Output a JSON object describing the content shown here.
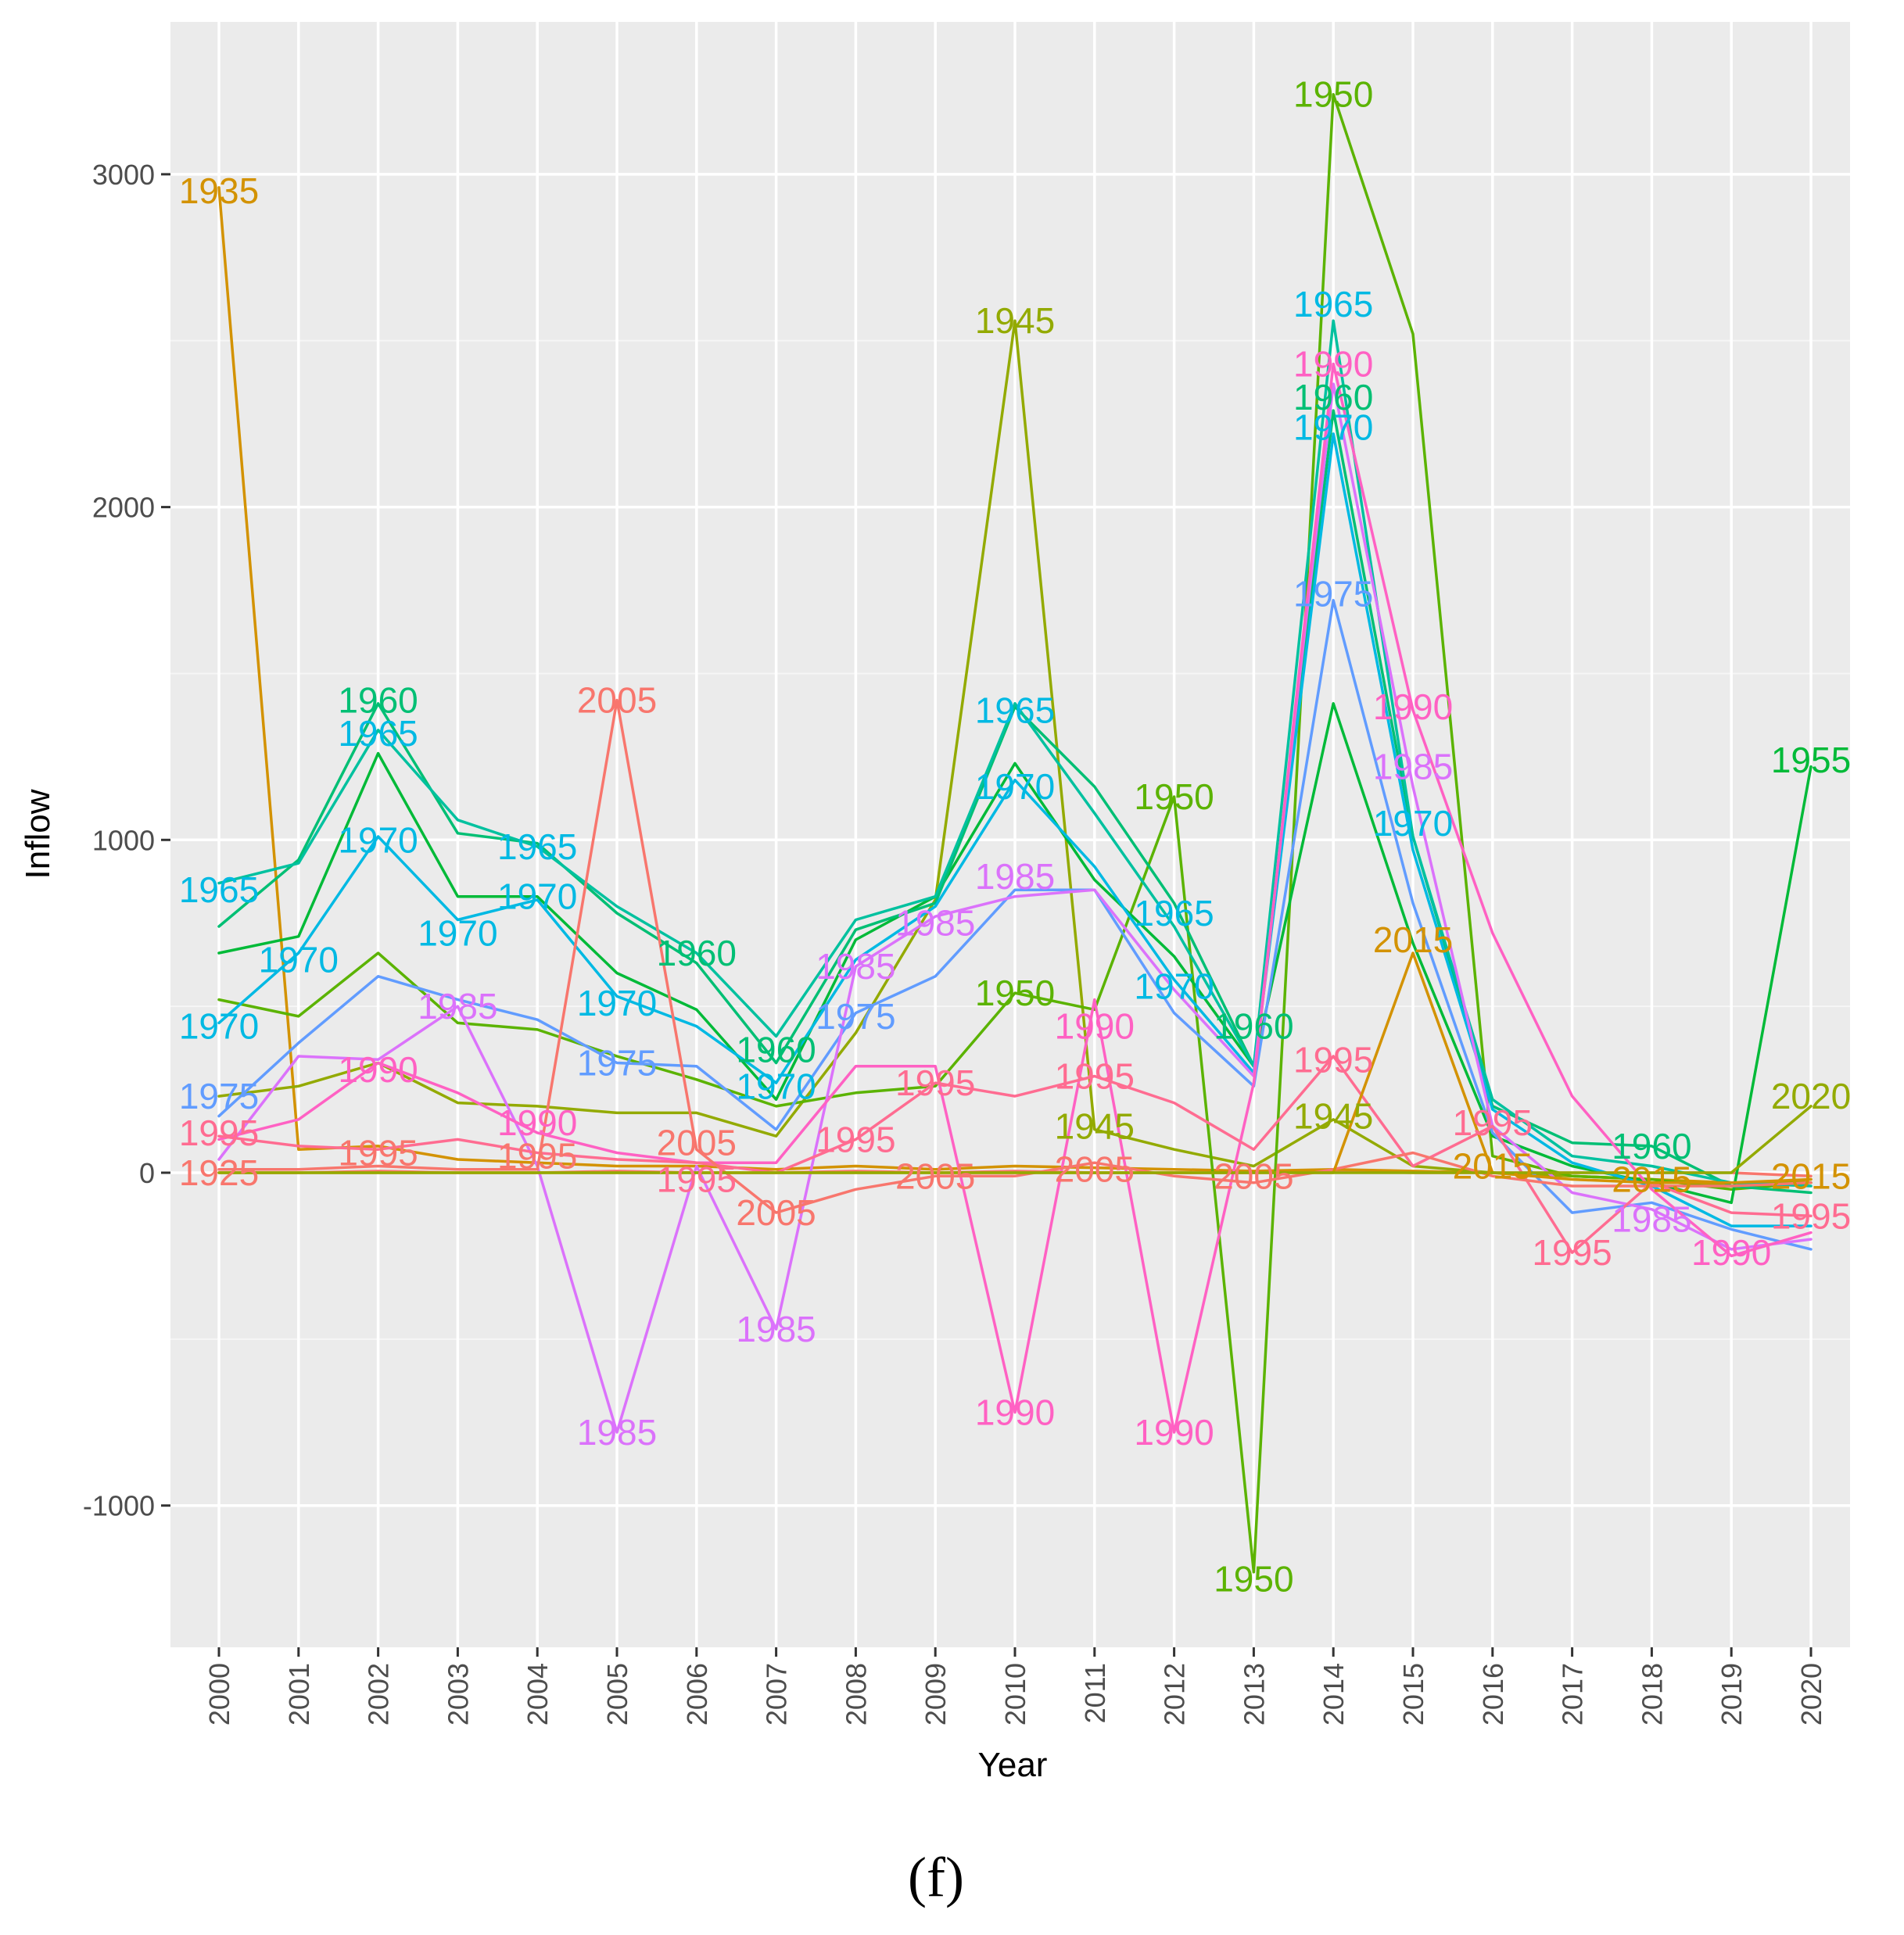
{
  "chart_data": {
    "type": "line",
    "xlabel": "Year",
    "ylabel": "Inflow",
    "caption": "(f)",
    "ylim": [
      -1420,
      3470
    ],
    "yticks": [
      -1000,
      0,
      1000,
      2000,
      3000
    ],
    "ytick_labels": [
      "-1000",
      "0",
      "1000",
      "2000",
      "3000"
    ],
    "x": [
      "2000",
      "2001",
      "2002",
      "2003",
      "2004",
      "2005",
      "2006",
      "2007",
      "2008",
      "2009",
      "2010",
      "2011",
      "2012",
      "2013",
      "2014",
      "2015",
      "2016",
      "2017",
      "2018",
      "2019",
      "2020"
    ],
    "grid": true,
    "series": [
      {
        "name": "1925",
        "color": "#F8766D",
        "values": [
          0,
          0,
          5,
          0,
          0,
          5,
          0,
          0,
          5,
          0,
          5,
          0,
          0,
          0,
          5,
          0,
          0,
          0,
          0,
          0,
          -10
        ]
      },
      {
        "name": "1935",
        "color": "#D39200",
        "values": [
          2960,
          70,
          80,
          40,
          30,
          20,
          20,
          10,
          20,
          10,
          20,
          15,
          10,
          5,
          10,
          5,
          0,
          -10,
          -20,
          -30,
          -30
        ]
      },
      {
        "name": "1945",
        "color": "#93AA00",
        "values": [
          230,
          260,
          330,
          210,
          200,
          180,
          180,
          110,
          420,
          820,
          2560,
          130,
          70,
          20,
          160,
          20,
          0,
          -10,
          -20,
          -40,
          -20
        ]
      },
      {
        "name": "1950",
        "color": "#5BB300",
        "values": [
          520,
          470,
          660,
          450,
          430,
          350,
          280,
          200,
          240,
          260,
          540,
          490,
          1130,
          -1200,
          3240,
          2520,
          50,
          -10,
          -20,
          -50,
          -30
        ]
      },
      {
        "name": "1955",
        "color": "#00BA38",
        "values": [
          660,
          710,
          1260,
          830,
          830,
          600,
          490,
          220,
          700,
          830,
          1230,
          880,
          650,
          320,
          1410,
          690,
          110,
          20,
          -30,
          -90,
          1220
        ]
      },
      {
        "name": "1960",
        "color": "#00BF74",
        "values": [
          740,
          940,
          1410,
          1020,
          990,
          780,
          630,
          330,
          730,
          810,
          1400,
          1160,
          810,
          320,
          2290,
          1010,
          200,
          90,
          80,
          -40,
          -60
        ]
      },
      {
        "name": "1965",
        "color": "#00C19F",
        "values": [
          870,
          930,
          1330,
          1060,
          980,
          800,
          660,
          410,
          760,
          830,
          1410,
          1080,
          740,
          320,
          2560,
          1010,
          220,
          50,
          20,
          -30,
          -40
        ]
      },
      {
        "name": "1970",
        "color": "#00B9E3",
        "values": [
          450,
          660,
          1010,
          760,
          820,
          530,
          440,
          270,
          640,
          800,
          1180,
          920,
          580,
          300,
          2220,
          970,
          190,
          30,
          -40,
          -160,
          -160
        ]
      },
      {
        "name": "1975",
        "color": "#619CFF",
        "values": [
          170,
          390,
          590,
          520,
          460,
          330,
          320,
          130,
          480,
          590,
          850,
          850,
          480,
          260,
          1720,
          810,
          120,
          -120,
          -90,
          -170,
          -230
        ]
      },
      {
        "name": "1985",
        "color": "#DB72FB",
        "values": [
          40,
          350,
          340,
          500,
          20,
          -780,
          20,
          -470,
          620,
          770,
          830,
          850,
          550,
          290,
          2370,
          1160,
          140,
          -60,
          -110,
          -230,
          -200
        ]
      },
      {
        "name": "1990",
        "color": "#FF61C3",
        "values": [
          100,
          160,
          330,
          240,
          120,
          60,
          30,
          30,
          320,
          320,
          -720,
          520,
          -780,
          270,
          2430,
          1390,
          720,
          230,
          -50,
          -250,
          -180
        ]
      },
      {
        "name": "1995",
        "color": "#FF6C91",
        "values": [
          110,
          80,
          70,
          100,
          60,
          40,
          30,
          0,
          100,
          270,
          230,
          290,
          210,
          70,
          350,
          20,
          140,
          -240,
          -30,
          -120,
          -130
        ]
      },
      {
        "name": "2005",
        "color": "#F8766D",
        "values": [
          10,
          10,
          20,
          10,
          10,
          1420,
          70,
          -120,
          -50,
          -10,
          -10,
          30,
          -10,
          -30,
          10,
          60,
          -10,
          -40,
          -40,
          -40,
          -30
        ]
      },
      {
        "name": "2015",
        "color": "#D39200",
        "values": [
          0,
          0,
          0,
          0,
          0,
          0,
          0,
          0,
          0,
          0,
          0,
          0,
          0,
          0,
          0,
          660,
          0,
          -20,
          -30,
          -30,
          -20
        ]
      },
      {
        "name": "2020",
        "color": "#93AA00",
        "values": [
          0,
          0,
          0,
          0,
          0,
          0,
          0,
          0,
          0,
          0,
          0,
          0,
          0,
          0,
          0,
          0,
          0,
          0,
          0,
          0,
          200
        ]
      }
    ],
    "annotations": [
      {
        "text": "1935",
        "x": "2000",
        "y": 2950,
        "color": "#D39200"
      },
      {
        "text": "1965",
        "x": "2000",
        "y": 850,
        "color": "#00B9E3"
      },
      {
        "text": "1970",
        "x": "2000",
        "y": 440,
        "color": "#00B9E3"
      },
      {
        "text": "1975",
        "x": "2000",
        "y": 230,
        "color": "#619CFF"
      },
      {
        "text": "1995",
        "x": "2000",
        "y": 120,
        "color": "#FF6C91"
      },
      {
        "text": "1925",
        "x": "2000",
        "y": 0,
        "color": "#F8766D"
      },
      {
        "text": "1970",
        "x": "2001",
        "y": 640,
        "color": "#00B9E3"
      },
      {
        "text": "1960",
        "x": "2002",
        "y": 1420,
        "color": "#00BF74"
      },
      {
        "text": "1965",
        "x": "2002",
        "y": 1320,
        "color": "#00B9E3"
      },
      {
        "text": "1970",
        "x": "2002",
        "y": 1000,
        "color": "#00B9E3"
      },
      {
        "text": "1990",
        "x": "2002",
        "y": 310,
        "color": "#FF61C3"
      },
      {
        "text": "1995",
        "x": "2002",
        "y": 60,
        "color": "#F8766D"
      },
      {
        "text": "1970",
        "x": "2003",
        "y": 720,
        "color": "#00B9E3"
      },
      {
        "text": "1985",
        "x": "2003",
        "y": 500,
        "color": "#DB72FB"
      },
      {
        "text": "1965",
        "x": "2004",
        "y": 980,
        "color": "#00B9E3"
      },
      {
        "text": "1970",
        "x": "2004",
        "y": 830,
        "color": "#00B9E3"
      },
      {
        "text": "1990",
        "x": "2004",
        "y": 150,
        "color": "#FF61C3"
      },
      {
        "text": "1995",
        "x": "2004",
        "y": 50,
        "color": "#F8766D"
      },
      {
        "text": "2005",
        "x": "2005",
        "y": 1420,
        "color": "#F8766D"
      },
      {
        "text": "1970",
        "x": "2005",
        "y": 510,
        "color": "#00B9E3"
      },
      {
        "text": "1975",
        "x": "2005",
        "y": 330,
        "color": "#619CFF"
      },
      {
        "text": "1985",
        "x": "2005",
        "y": -780,
        "color": "#DB72FB"
      },
      {
        "text": "1960",
        "x": "2006",
        "y": 660,
        "color": "#00BF74"
      },
      {
        "text": "2005",
        "x": "2006",
        "y": 90,
        "color": "#F8766D"
      },
      {
        "text": "1995",
        "x": "2006",
        "y": -20,
        "color": "#FF6C91"
      },
      {
        "text": "1960",
        "x": "2007",
        "y": 370,
        "color": "#00BF74"
      },
      {
        "text": "1970",
        "x": "2007",
        "y": 260,
        "color": "#00B9E3"
      },
      {
        "text": "2005",
        "x": "2007",
        "y": -120,
        "color": "#F8766D"
      },
      {
        "text": "1985",
        "x": "2007",
        "y": -470,
        "color": "#DB72FB"
      },
      {
        "text": "1985",
        "x": "2008",
        "y": 620,
        "color": "#DB72FB"
      },
      {
        "text": "1975",
        "x": "2008",
        "y": 470,
        "color": "#619CFF"
      },
      {
        "text": "1995",
        "x": "2008",
        "y": 100,
        "color": "#FF6C91"
      },
      {
        "text": "1985",
        "x": "2009",
        "y": 750,
        "color": "#DB72FB"
      },
      {
        "text": "1995",
        "x": "2009",
        "y": 270,
        "color": "#FF6C91"
      },
      {
        "text": "2005",
        "x": "2009",
        "y": -10,
        "color": "#F8766D"
      },
      {
        "text": "1945",
        "x": "2010",
        "y": 2560,
        "color": "#93AA00"
      },
      {
        "text": "1965",
        "x": "2010",
        "y": 1390,
        "color": "#00B9E3"
      },
      {
        "text": "1970",
        "x": "2010",
        "y": 1160,
        "color": "#00B9E3"
      },
      {
        "text": "1985",
        "x": "2010",
        "y": 890,
        "color": "#DB72FB"
      },
      {
        "text": "1950",
        "x": "2010",
        "y": 540,
        "color": "#5BB300"
      },
      {
        "text": "1990",
        "x": "2010",
        "y": -720,
        "color": "#FF61C3"
      },
      {
        "text": "1990",
        "x": "2011",
        "y": 440,
        "color": "#FF61C3"
      },
      {
        "text": "1995",
        "x": "2011",
        "y": 290,
        "color": "#FF6C91"
      },
      {
        "text": "1945",
        "x": "2011",
        "y": 140,
        "color": "#93AA00"
      },
      {
        "text": "2005",
        "x": "2011",
        "y": 10,
        "color": "#F8766D"
      },
      {
        "text": "1950",
        "x": "2012",
        "y": 1130,
        "color": "#5BB300"
      },
      {
        "text": "1965",
        "x": "2012",
        "y": 780,
        "color": "#00B9E3"
      },
      {
        "text": "1970",
        "x": "2012",
        "y": 560,
        "color": "#00B9E3"
      },
      {
        "text": "1990",
        "x": "2012",
        "y": -780,
        "color": "#FF61C3"
      },
      {
        "text": "1960",
        "x": "2013",
        "y": 440,
        "color": "#00BF74"
      },
      {
        "text": "2005",
        "x": "2013",
        "y": -10,
        "color": "#F8766D"
      },
      {
        "text": "1950",
        "x": "2013",
        "y": -1220,
        "color": "#5BB300"
      },
      {
        "text": "1950",
        "x": "2014",
        "y": 3240,
        "color": "#5BB300"
      },
      {
        "text": "1965",
        "x": "2014",
        "y": 2610,
        "color": "#00B9E3"
      },
      {
        "text": "1990",
        "x": "2014",
        "y": 2430,
        "color": "#FF61C3"
      },
      {
        "text": "1960",
        "x": "2014",
        "y": 2330,
        "color": "#00BF74"
      },
      {
        "text": "1970",
        "x": "2014",
        "y": 2240,
        "color": "#00B9E3"
      },
      {
        "text": "1975",
        "x": "2014",
        "y": 1740,
        "color": "#619CFF"
      },
      {
        "text": "1995",
        "x": "2014",
        "y": 340,
        "color": "#FF6C91"
      },
      {
        "text": "1945",
        "x": "2014",
        "y": 170,
        "color": "#93AA00"
      },
      {
        "text": "1990",
        "x": "2015",
        "y": 1400,
        "color": "#FF61C3"
      },
      {
        "text": "1985",
        "x": "2015",
        "y": 1220,
        "color": "#DB72FB"
      },
      {
        "text": "1970",
        "x": "2015",
        "y": 1050,
        "color": "#00B9E3"
      },
      {
        "text": "2015",
        "x": "2015",
        "y": 700,
        "color": "#D39200"
      },
      {
        "text": "1995",
        "x": "2016",
        "y": 150,
        "color": "#FF6C91"
      },
      {
        "text": "2015",
        "x": "2016",
        "y": 20,
        "color": "#D39200"
      },
      {
        "text": "1995",
        "x": "2017",
        "y": -240,
        "color": "#FF6C91"
      },
      {
        "text": "1960",
        "x": "2018",
        "y": 80,
        "color": "#00BF74"
      },
      {
        "text": "2015",
        "x": "2018",
        "y": -20,
        "color": "#D39200"
      },
      {
        "text": "1985",
        "x": "2018",
        "y": -140,
        "color": "#DB72FB"
      },
      {
        "text": "1990",
        "x": "2019",
        "y": -240,
        "color": "#FF61C3"
      },
      {
        "text": "1955",
        "x": "2020",
        "y": 1240,
        "color": "#00BA38"
      },
      {
        "text": "2020",
        "x": "2020",
        "y": 230,
        "color": "#93AA00"
      },
      {
        "text": "2015",
        "x": "2020",
        "y": -10,
        "color": "#D39200"
      },
      {
        "text": "1995",
        "x": "2020",
        "y": -130,
        "color": "#FF6C91"
      }
    ]
  }
}
